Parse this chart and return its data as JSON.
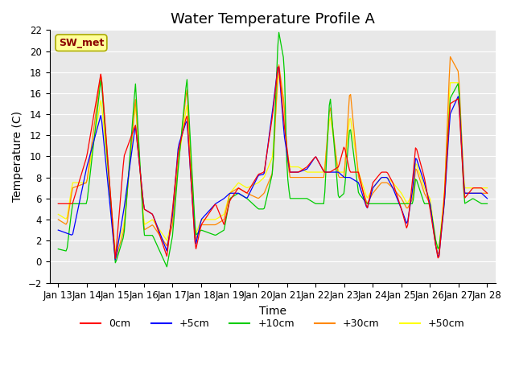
{
  "title": "Water Temperature Profile A",
  "xlabel": "Time",
  "ylabel": "Temperature (C)",
  "ylim": [
    -2,
    22
  ],
  "yticks": [
    -2,
    0,
    2,
    4,
    6,
    8,
    10,
    12,
    14,
    16,
    18,
    20,
    22
  ],
  "xlabels": [
    "Jan 13",
    "Jan 14",
    "Jan 15",
    "Jan 16",
    "Jan 17",
    "Jan 18",
    "Jan 19",
    "Jan 20",
    "Jan 21",
    "Jan 22",
    "Jan 23",
    "Jan 24",
    "Jan 25",
    "Jan 26",
    "Jan 27",
    "Jan 28"
  ],
  "xtick_positions": [
    0,
    1,
    2,
    3,
    4,
    5,
    6,
    7,
    8,
    9,
    10,
    11,
    12,
    13,
    14,
    15
  ],
  "line_colors": {
    "0cm": "#ff0000",
    "+5cm": "#0000ff",
    "+10cm": "#00cc00",
    "+30cm": "#ff8800",
    "+50cm": "#ffff00"
  },
  "annotation_text": "SW_met",
  "annotation_color": "#8b0000",
  "annotation_bg": "#ffff99",
  "axes_bg": "#e8e8e8",
  "title_fontsize": 13,
  "label_fontsize": 10,
  "tick_fontsize": 8.5,
  "legend_fontsize": 9
}
